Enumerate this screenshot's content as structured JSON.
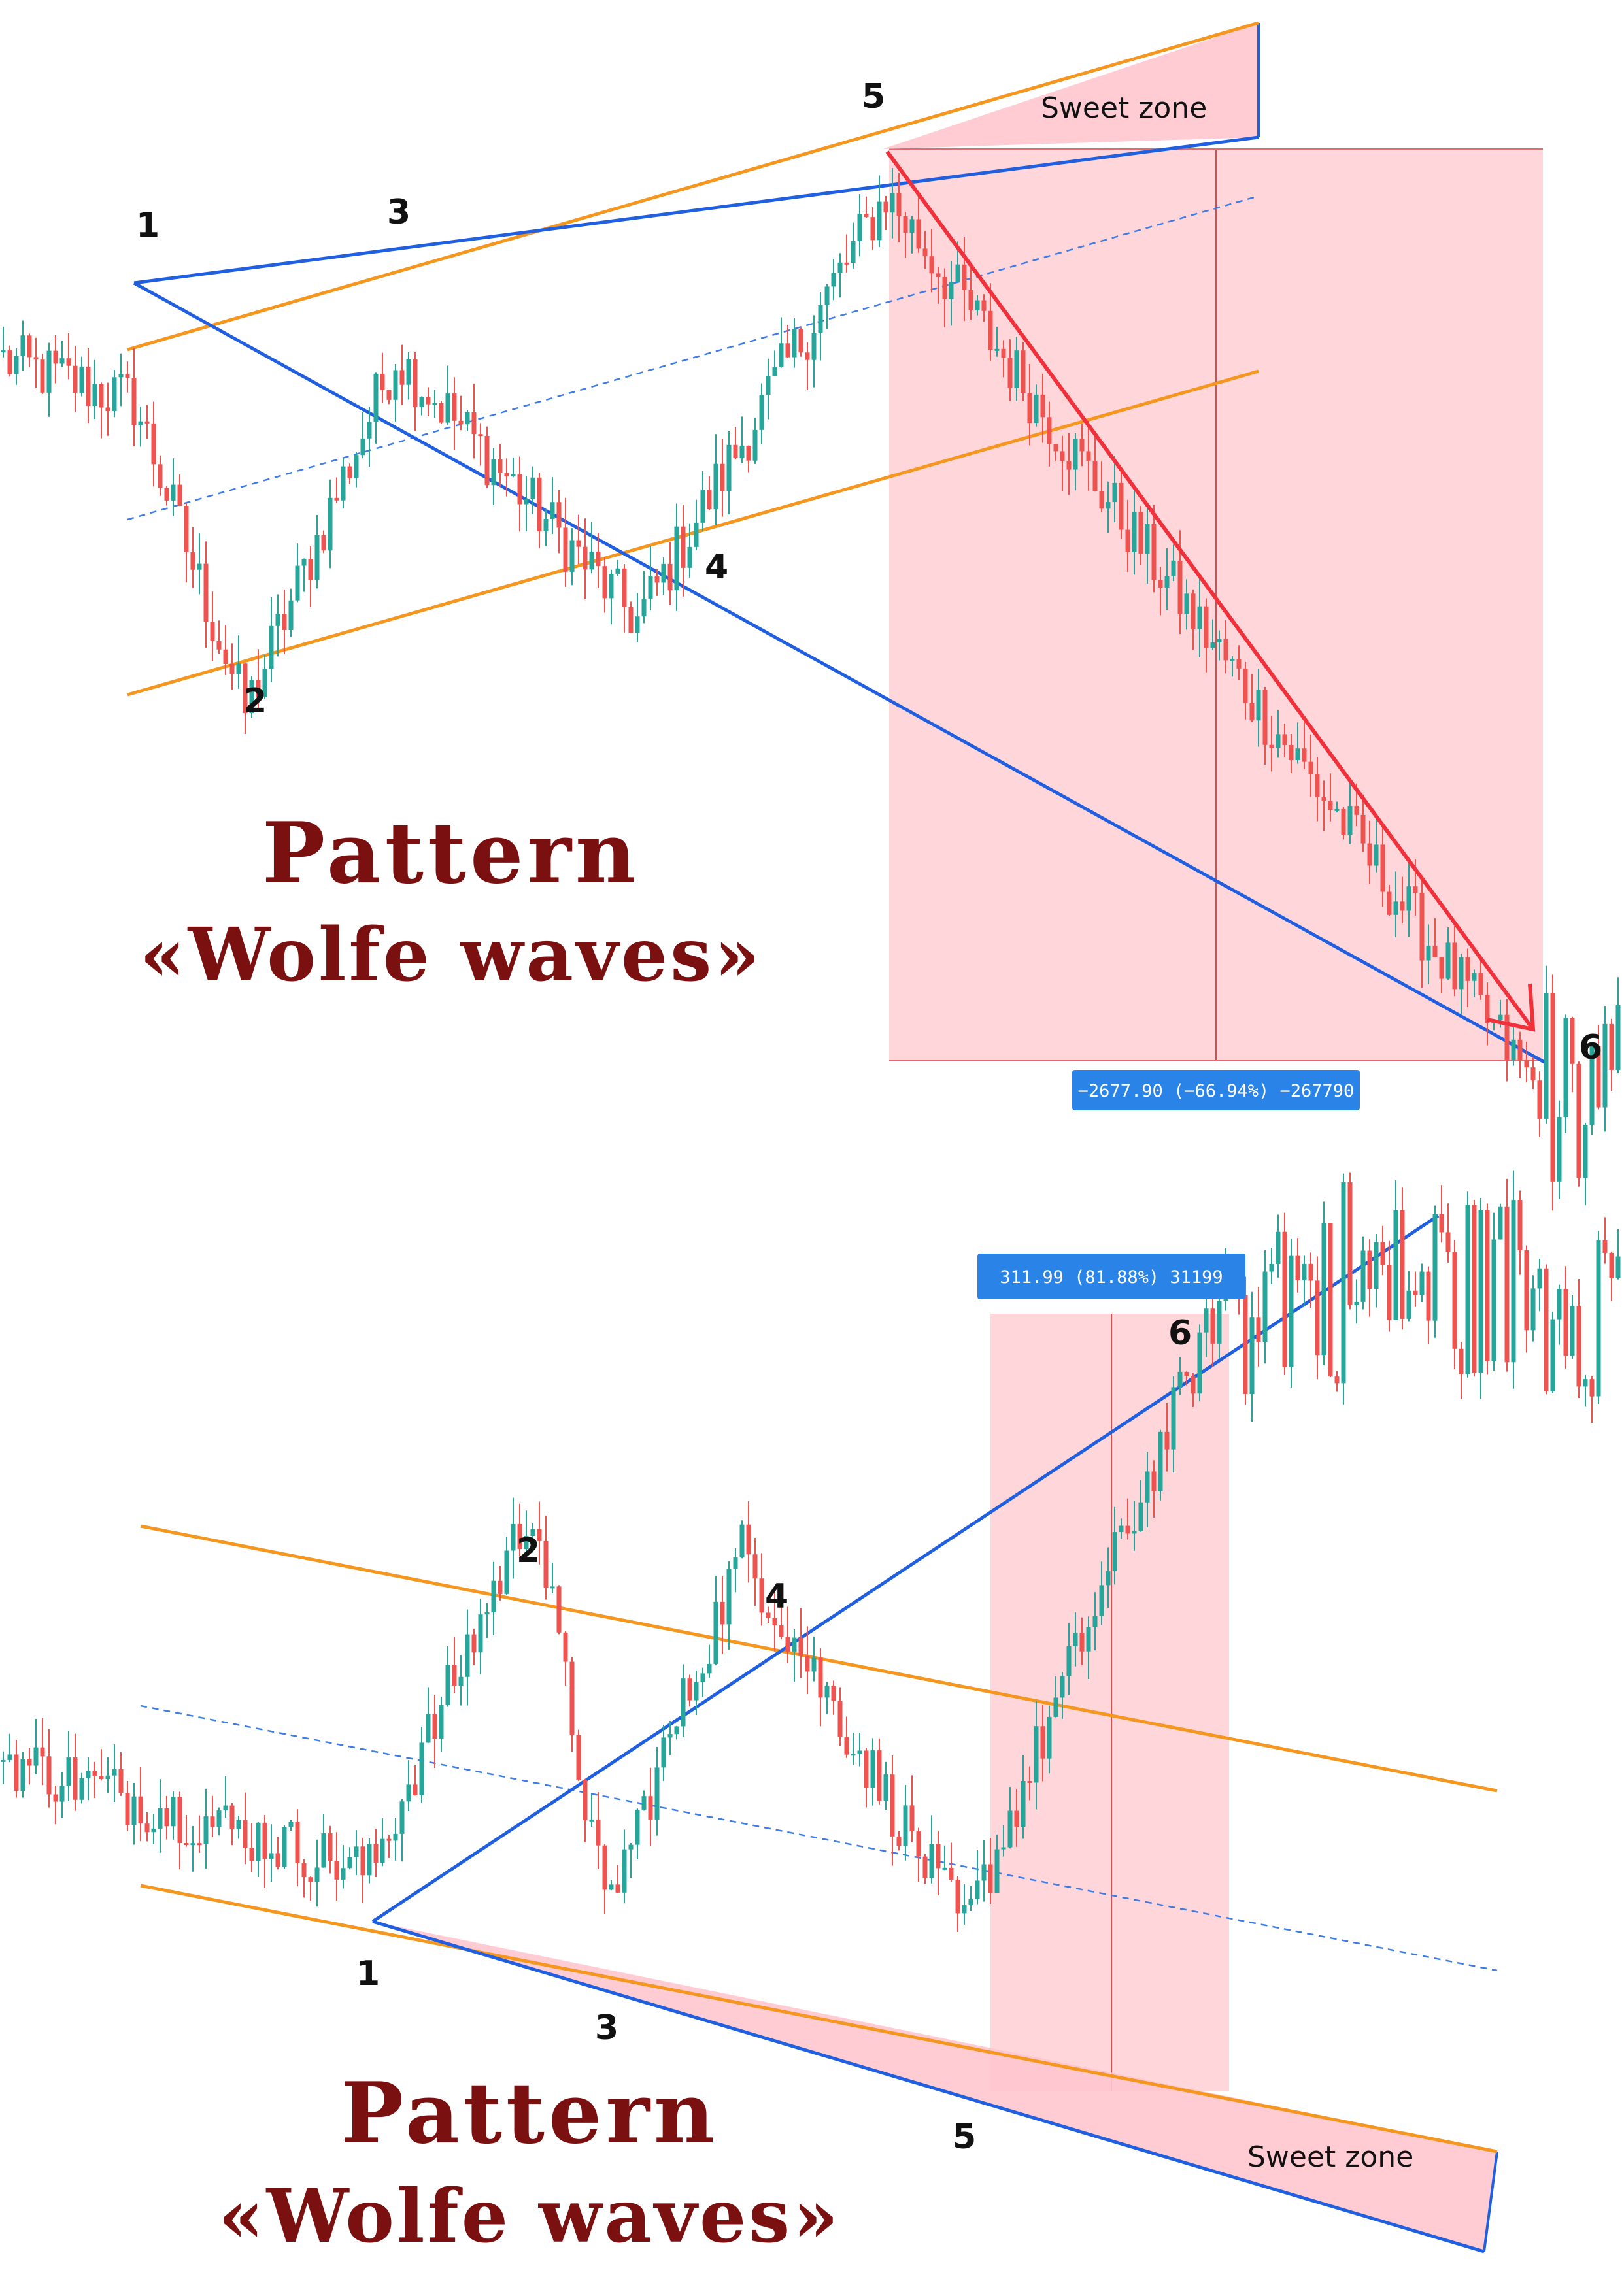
{
  "colors": {
    "bull": "#26a69a",
    "bear": "#ef5350",
    "wave_line": "#1f5fe0",
    "channel": "#f5961e",
    "target_arrow": "#f0303a",
    "zone_fill": "#ffc7cf",
    "target_box": "#ffcfd3",
    "measure_bg": "#2a84e8",
    "title": "#7a1010"
  },
  "chart_data": [
    {
      "type": "candlestick",
      "pattern": "bearish",
      "title_line1": "Pattern",
      "title_line2": "«Wolfe waves»",
      "sweet_zone_label": "Sweet zone",
      "measurement_label": "−2677.90 (−66.94%) −267790",
      "wave_points": [
        {
          "label": "1",
          "x": 20,
          "y": 4000
        },
        {
          "label": "2",
          "x": 37,
          "y": 2800
        },
        {
          "label": "3",
          "x": 60,
          "y": 4180
        },
        {
          "label": "4",
          "x": 97,
          "y": 3150
        },
        {
          "label": "5",
          "x": 135,
          "y": 4800
        },
        {
          "label": "6",
          "x": 235,
          "y": 1320
        }
      ],
      "ylim": [
        1200,
        5200
      ],
      "xlim": [
        0,
        248
      ],
      "candles": []
    },
    {
      "type": "candlestick",
      "pattern": "bullish",
      "title_line1": "Pattern",
      "title_line2": "«Wolfe waves»",
      "sweet_zone_label": "Sweet zone",
      "measurement_label": "311.99 (81.88%) 31199",
      "wave_points": [
        {
          "label": "1",
          "x": 56,
          "y": 220
        },
        {
          "label": "2",
          "x": 81,
          "y": 410
        },
        {
          "label": "3",
          "x": 92,
          "y": 200
        },
        {
          "label": "4",
          "x": 113,
          "y": 385
        },
        {
          "label": "5",
          "x": 147,
          "y": 190
        },
        {
          "label": "6",
          "x": 187,
          "y": 520
        }
      ],
      "ylim": [
        40,
        560
      ],
      "xlim": [
        0,
        248
      ],
      "candles": []
    }
  ]
}
